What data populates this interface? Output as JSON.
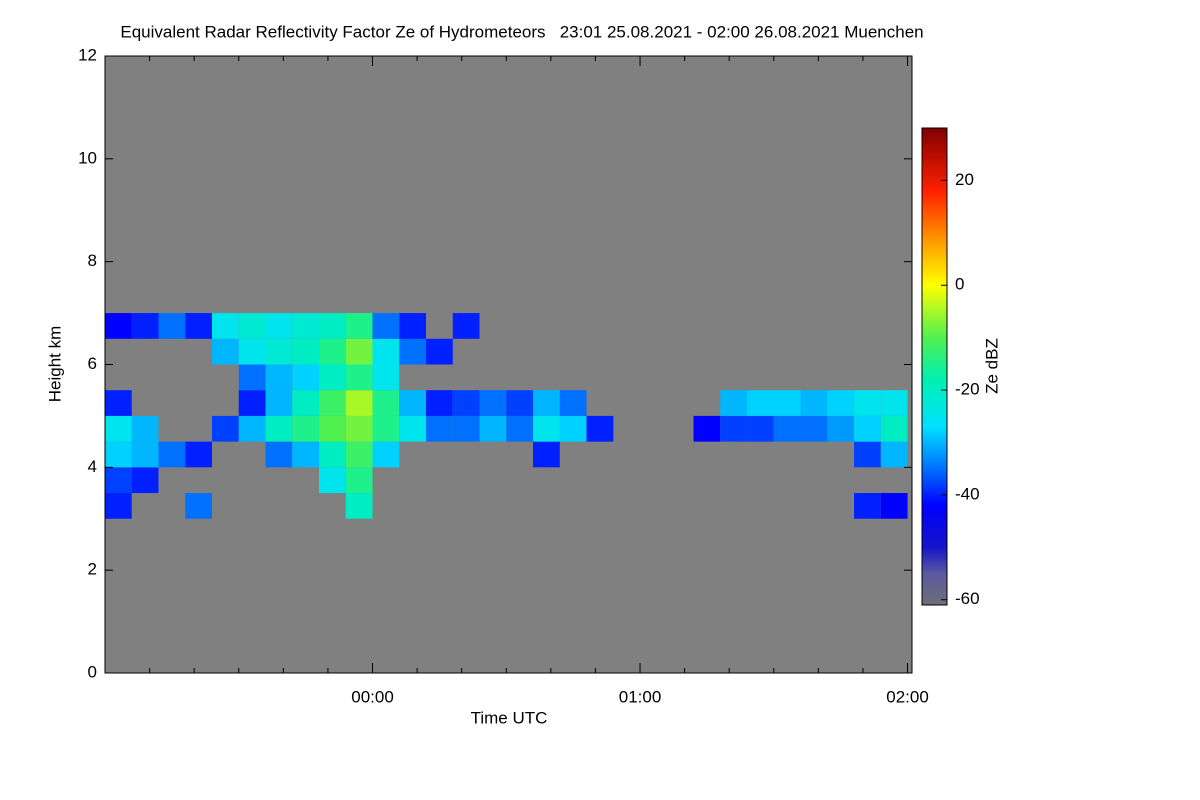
{
  "chart_data": {
    "type": "heatmap",
    "title": "Equivalent Radar Reflectivity Factor Ze of Hydrometeors   23:01 25.08.2021 - 02:00 26.08.2021 Muenchen",
    "xlabel": "Time UTC",
    "ylabel": "Height km",
    "colorbar_label": "Ze dBZ",
    "xlim": [
      -60,
      121
    ],
    "xticks": [
      {
        "value": 0,
        "label": "00:00"
      },
      {
        "value": 60,
        "label": "01:00"
      },
      {
        "value": 120,
        "label": "02:00"
      }
    ],
    "xminorticks": [
      -50,
      -40,
      -30,
      -20,
      -10,
      10,
      20,
      30,
      40,
      50,
      70,
      80,
      90,
      100,
      110
    ],
    "ylim": [
      0,
      12
    ],
    "yticks": [
      0,
      2,
      4,
      6,
      8,
      10,
      12
    ],
    "zlim": [
      -61,
      30
    ],
    "zticks": [
      -60,
      -40,
      -20,
      0,
      20
    ],
    "background": "#808080",
    "colorscale": [
      {
        "value": -61,
        "color": "#6e6e78"
      },
      {
        "value": -55,
        "color": "#5a5aa0"
      },
      {
        "value": -50,
        "color": "#1414c8"
      },
      {
        "value": -42,
        "color": "#0000ff"
      },
      {
        "value": -35,
        "color": "#0070ff"
      },
      {
        "value": -27,
        "color": "#00e0ff"
      },
      {
        "value": -18,
        "color": "#00f0b0"
      },
      {
        "value": -10,
        "color": "#50f050"
      },
      {
        "value": 0,
        "color": "#ffff00"
      },
      {
        "value": 8,
        "color": "#ffa000"
      },
      {
        "value": 18,
        "color": "#ff2000"
      },
      {
        "value": 30,
        "color": "#800000"
      }
    ],
    "x": [
      -57,
      -51,
      -45,
      -39,
      -33,
      -27,
      -21,
      -15,
      -9,
      -3,
      3,
      9,
      15,
      21,
      27,
      33,
      39,
      45,
      51,
      57,
      63,
      69,
      75,
      81,
      87,
      93,
      99,
      105,
      111,
      117
    ],
    "y": [
      3.25,
      3.75,
      4.25,
      4.75,
      5.25,
      5.75,
      6.25,
      6.75
    ],
    "z": [
      [
        -40,
        null,
        null,
        -35,
        null,
        null,
        null,
        null,
        null,
        -20,
        null,
        null,
        null,
        null,
        null,
        null,
        null,
        null,
        null,
        null,
        null,
        null,
        null,
        null,
        null,
        null,
        null,
        null,
        -40,
        -42
      ],
      [
        -38,
        -40,
        null,
        null,
        null,
        null,
        null,
        null,
        -25,
        -15,
        null,
        null,
        null,
        null,
        null,
        null,
        null,
        null,
        null,
        null,
        null,
        null,
        null,
        null,
        null,
        null,
        null,
        null,
        null,
        null
      ],
      [
        -28,
        -30,
        -35,
        -40,
        null,
        null,
        -35,
        -30,
        -20,
        -12,
        -28,
        null,
        null,
        null,
        null,
        null,
        -40,
        null,
        null,
        null,
        null,
        null,
        null,
        null,
        null,
        null,
        null,
        null,
        -38,
        -30
      ],
      [
        -25,
        -30,
        null,
        null,
        -38,
        -30,
        -20,
        -15,
        -10,
        -8,
        -15,
        -25,
        -35,
        -35,
        -30,
        -35,
        -25,
        -28,
        -40,
        null,
        null,
        null,
        -42,
        -38,
        -38,
        -35,
        -35,
        -32,
        -28,
        -20
      ],
      [
        -40,
        null,
        null,
        null,
        null,
        -40,
        -30,
        -20,
        -12,
        -5,
        -15,
        -30,
        -40,
        -38,
        -35,
        -38,
        -30,
        -35,
        null,
        null,
        null,
        null,
        null,
        -30,
        -28,
        -28,
        -30,
        -28,
        -25,
        -25
      ],
      [
        null,
        null,
        null,
        null,
        null,
        -35,
        -30,
        -28,
        -20,
        -15,
        -25,
        null,
        null,
        null,
        null,
        null,
        null,
        null,
        null,
        null,
        null,
        null,
        null,
        null,
        null,
        null,
        null,
        null,
        null,
        null
      ],
      [
        null,
        null,
        null,
        null,
        -30,
        -25,
        -22,
        -20,
        -15,
        -8,
        -25,
        -35,
        -40,
        null,
        null,
        null,
        null,
        null,
        null,
        null,
        null,
        null,
        null,
        null,
        null,
        null,
        null,
        null,
        null,
        null
      ],
      [
        -42,
        -40,
        -35,
        -40,
        -25,
        -22,
        -25,
        -22,
        -20,
        -15,
        -35,
        -40,
        null,
        -40,
        null,
        null,
        null,
        null,
        null,
        null,
        null,
        null,
        null,
        null,
        null,
        null,
        null,
        null,
        null,
        null
      ]
    ]
  }
}
